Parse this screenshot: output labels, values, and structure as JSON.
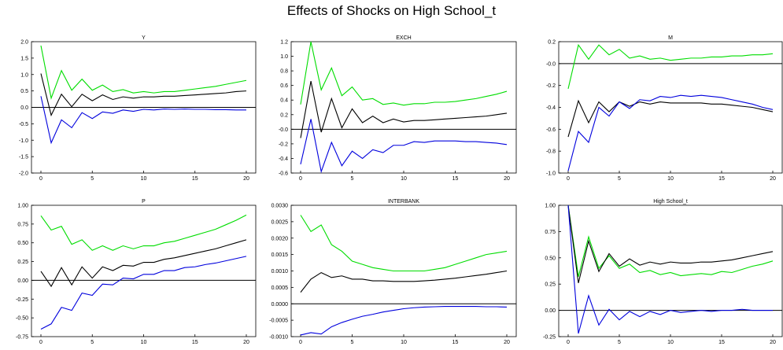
{
  "figure": {
    "title": "Effects of Shocks on High School_t"
  },
  "colors": {
    "point": "#000000",
    "upper": "#00dd00",
    "lower": "#0000dd",
    "frame": "#000000"
  },
  "chart_data": [
    {
      "type": "line",
      "title": "Y",
      "x": [
        0,
        1,
        2,
        3,
        4,
        5,
        6,
        7,
        8,
        9,
        10,
        11,
        12,
        13,
        14,
        15,
        16,
        17,
        18,
        19,
        20
      ],
      "ylim": [
        -2.0,
        2.0
      ],
      "yticks": [
        -2.0,
        -1.5,
        -1.0,
        -0.5,
        0.0,
        0.5,
        1.0,
        1.5,
        2.0
      ],
      "ytick_labels": [
        "-2.0",
        "-1.5",
        "-1.0",
        "-0.5",
        "0.0",
        "0.5",
        "1.0",
        "1.5",
        "2.0"
      ],
      "xticks": [
        0,
        5,
        10,
        15,
        20
      ],
      "xtick_labels": [
        "0",
        "5",
        "10",
        "15",
        "20"
      ],
      "zero_line": 0,
      "series": [
        {
          "key": "upper",
          "values": [
            1.88,
            0.28,
            1.12,
            0.52,
            0.86,
            0.52,
            0.68,
            0.48,
            0.54,
            0.44,
            0.48,
            0.44,
            0.48,
            0.48,
            0.52,
            0.56,
            0.6,
            0.64,
            0.7,
            0.76,
            0.82
          ]
        },
        {
          "key": "point",
          "values": [
            1.03,
            -0.24,
            0.4,
            0.02,
            0.4,
            0.2,
            0.38,
            0.24,
            0.32,
            0.28,
            0.32,
            0.32,
            0.34,
            0.34,
            0.36,
            0.38,
            0.4,
            0.42,
            0.44,
            0.48,
            0.5
          ]
        },
        {
          "key": "lower",
          "values": [
            0.34,
            -1.08,
            -0.38,
            -0.62,
            -0.16,
            -0.34,
            -0.14,
            -0.18,
            -0.08,
            -0.12,
            -0.06,
            -0.08,
            -0.05,
            -0.06,
            -0.05,
            -0.06,
            -0.06,
            -0.07,
            -0.07,
            -0.08,
            -0.08
          ]
        }
      ]
    },
    {
      "type": "line",
      "title": "EXCH",
      "x": [
        0,
        1,
        2,
        3,
        4,
        5,
        6,
        7,
        8,
        9,
        10,
        11,
        12,
        13,
        14,
        15,
        16,
        17,
        18,
        19,
        20
      ],
      "ylim": [
        -0.6,
        1.2
      ],
      "yticks": [
        -0.6,
        -0.4,
        -0.2,
        0.0,
        0.2,
        0.4,
        0.6,
        0.8,
        1.0,
        1.2
      ],
      "ytick_labels": [
        "-0.6",
        "-0.4",
        "-0.2",
        "-0.0",
        "0.2",
        "0.4",
        "0.6",
        "0.8",
        "1.0",
        "1.2"
      ],
      "xticks": [
        0,
        5,
        10,
        15,
        20
      ],
      "xtick_labels": [
        "0",
        "5",
        "10",
        "15",
        "20"
      ],
      "zero_line": 0,
      "series": [
        {
          "key": "upper",
          "values": [
            0.34,
            1.2,
            0.54,
            0.84,
            0.46,
            0.58,
            0.4,
            0.42,
            0.34,
            0.36,
            0.33,
            0.35,
            0.35,
            0.37,
            0.37,
            0.38,
            0.4,
            0.42,
            0.45,
            0.48,
            0.52
          ]
        },
        {
          "key": "point",
          "values": [
            -0.12,
            0.66,
            -0.04,
            0.42,
            0.02,
            0.28,
            0.09,
            0.18,
            0.09,
            0.14,
            0.1,
            0.12,
            0.12,
            0.13,
            0.14,
            0.15,
            0.16,
            0.17,
            0.18,
            0.2,
            0.22
          ]
        },
        {
          "key": "lower",
          "values": [
            -0.48,
            0.14,
            -0.58,
            -0.18,
            -0.5,
            -0.3,
            -0.4,
            -0.28,
            -0.32,
            -0.22,
            -0.22,
            -0.17,
            -0.18,
            -0.16,
            -0.16,
            -0.16,
            -0.17,
            -0.17,
            -0.18,
            -0.19,
            -0.21
          ]
        }
      ]
    },
    {
      "type": "line",
      "title": "M",
      "x": [
        0,
        1,
        2,
        3,
        4,
        5,
        6,
        7,
        8,
        9,
        10,
        11,
        12,
        13,
        14,
        15,
        16,
        17,
        18,
        19,
        20
      ],
      "ylim": [
        -1.0,
        0.2
      ],
      "yticks": [
        -1.0,
        -0.8,
        -0.6,
        -0.4,
        -0.2,
        0.0,
        0.2
      ],
      "ytick_labels": [
        "-1.0",
        "-0.8",
        "-0.6",
        "-0.4",
        "-0.2",
        "-0.0",
        "0.2"
      ],
      "xticks": [
        0,
        5,
        10,
        15,
        20
      ],
      "xtick_labels": [
        "0",
        "5",
        "10",
        "15",
        "20"
      ],
      "zero_line": 0,
      "series": [
        {
          "key": "upper",
          "values": [
            -0.23,
            0.17,
            0.04,
            0.17,
            0.08,
            0.13,
            0.05,
            0.07,
            0.04,
            0.05,
            0.03,
            0.04,
            0.05,
            0.05,
            0.06,
            0.06,
            0.07,
            0.07,
            0.08,
            0.08,
            0.09
          ]
        },
        {
          "key": "point",
          "values": [
            -0.67,
            -0.34,
            -0.54,
            -0.35,
            -0.44,
            -0.35,
            -0.39,
            -0.35,
            -0.37,
            -0.35,
            -0.36,
            -0.36,
            -0.36,
            -0.36,
            -0.37,
            -0.37,
            -0.38,
            -0.39,
            -0.4,
            -0.42,
            -0.44
          ]
        },
        {
          "key": "lower",
          "values": [
            -0.98,
            -0.62,
            -0.72,
            -0.4,
            -0.48,
            -0.35,
            -0.41,
            -0.33,
            -0.34,
            -0.3,
            -0.31,
            -0.29,
            -0.3,
            -0.29,
            -0.3,
            -0.31,
            -0.33,
            -0.35,
            -0.37,
            -0.4,
            -0.42
          ]
        }
      ]
    },
    {
      "type": "line",
      "title": "P",
      "x": [
        0,
        1,
        2,
        3,
        4,
        5,
        6,
        7,
        8,
        9,
        10,
        11,
        12,
        13,
        14,
        15,
        16,
        17,
        18,
        19,
        20
      ],
      "ylim": [
        -0.75,
        1.0
      ],
      "yticks": [
        -0.75,
        -0.5,
        -0.25,
        0.0,
        0.25,
        0.5,
        0.75,
        1.0
      ],
      "ytick_labels": [
        "-0.75",
        "-0.50",
        "-0.25",
        "0.00",
        "0.25",
        "0.50",
        "0.75",
        "1.00"
      ],
      "xticks": [
        0,
        5,
        10,
        15,
        20
      ],
      "xtick_labels": [
        "0",
        "5",
        "10",
        "15",
        "20"
      ],
      "zero_line": 0,
      "series": [
        {
          "key": "upper",
          "values": [
            0.86,
            0.67,
            0.72,
            0.48,
            0.54,
            0.4,
            0.46,
            0.4,
            0.46,
            0.42,
            0.46,
            0.46,
            0.5,
            0.52,
            0.56,
            0.6,
            0.64,
            0.68,
            0.74,
            0.8,
            0.87
          ]
        },
        {
          "key": "point",
          "values": [
            0.12,
            -0.08,
            0.17,
            -0.06,
            0.18,
            0.03,
            0.18,
            0.13,
            0.2,
            0.19,
            0.24,
            0.24,
            0.28,
            0.3,
            0.33,
            0.36,
            0.39,
            0.42,
            0.46,
            0.5,
            0.54
          ]
        },
        {
          "key": "lower",
          "values": [
            -0.65,
            -0.58,
            -0.36,
            -0.4,
            -0.17,
            -0.2,
            -0.05,
            -0.06,
            0.03,
            0.02,
            0.08,
            0.08,
            0.13,
            0.13,
            0.17,
            0.18,
            0.21,
            0.23,
            0.26,
            0.29,
            0.32
          ]
        }
      ]
    },
    {
      "type": "line",
      "title": "INTERBANK",
      "x": [
        0,
        1,
        2,
        3,
        4,
        5,
        6,
        7,
        8,
        9,
        10,
        11,
        12,
        13,
        14,
        15,
        16,
        17,
        18,
        19,
        20
      ],
      "ylim": [
        -0.001,
        0.003
      ],
      "yticks": [
        -0.001,
        -0.0005,
        0.0,
        0.0005,
        0.001,
        0.0015,
        0.002,
        0.0025,
        0.003
      ],
      "ytick_labels": [
        "-0.0010",
        "-0.0005",
        "0.0000",
        "0.0005",
        "0.0010",
        "0.0015",
        "0.0020",
        "0.0025",
        "0.0030"
      ],
      "xticks": [
        0,
        5,
        10,
        15,
        20
      ],
      "xtick_labels": [
        "0",
        "5",
        "10",
        "15",
        "20"
      ],
      "zero_line": 0,
      "series": [
        {
          "key": "upper",
          "values": [
            0.0027,
            0.0022,
            0.0024,
            0.0018,
            0.0016,
            0.0013,
            0.0012,
            0.0011,
            0.00105,
            0.001,
            0.001,
            0.001,
            0.001,
            0.00105,
            0.0011,
            0.0012,
            0.0013,
            0.0014,
            0.0015,
            0.00155,
            0.0016
          ]
        },
        {
          "key": "point",
          "values": [
            0.00035,
            0.00075,
            0.00095,
            0.0008,
            0.00085,
            0.00075,
            0.00075,
            0.0007,
            0.0007,
            0.00068,
            0.00068,
            0.00068,
            0.0007,
            0.00072,
            0.00075,
            0.00078,
            0.00082,
            0.00086,
            0.0009,
            0.00095,
            0.001
          ]
        },
        {
          "key": "lower",
          "values": [
            -0.00095,
            -0.00088,
            -0.00092,
            -0.0007,
            -0.00057,
            -0.00047,
            -0.00038,
            -0.00032,
            -0.00025,
            -0.0002,
            -0.00015,
            -0.00012,
            -0.0001,
            -9e-05,
            -8e-05,
            -8e-05,
            -8e-05,
            -8e-05,
            -9e-05,
            -9e-05,
            -0.0001
          ]
        }
      ]
    },
    {
      "type": "line",
      "title": "High School_t",
      "x": [
        0,
        1,
        2,
        3,
        4,
        5,
        6,
        7,
        8,
        9,
        10,
        11,
        12,
        13,
        14,
        15,
        16,
        17,
        18,
        19,
        20
      ],
      "ylim": [
        -0.25,
        1.0
      ],
      "yticks": [
        -0.25,
        0.0,
        0.25,
        0.5,
        0.75,
        1.0
      ],
      "ytick_labels": [
        "-0.25",
        "0.00",
        "0.25",
        "0.50",
        "0.75",
        "1.00"
      ],
      "xticks": [
        0,
        5,
        10,
        15,
        20
      ],
      "xtick_labels": [
        "0",
        "5",
        "10",
        "15",
        "20"
      ],
      "zero_line": 0,
      "series": [
        {
          "key": "upper",
          "values": [
            1.0,
            0.32,
            0.7,
            0.4,
            0.52,
            0.4,
            0.44,
            0.36,
            0.38,
            0.34,
            0.36,
            0.33,
            0.34,
            0.35,
            0.34,
            0.37,
            0.36,
            0.39,
            0.42,
            0.44,
            0.47
          ]
        },
        {
          "key": "point",
          "values": [
            1.0,
            0.26,
            0.66,
            0.37,
            0.54,
            0.42,
            0.49,
            0.43,
            0.46,
            0.44,
            0.46,
            0.45,
            0.45,
            0.46,
            0.46,
            0.47,
            0.48,
            0.5,
            0.52,
            0.54,
            0.56
          ]
        },
        {
          "key": "lower",
          "values": [
            1.0,
            -0.22,
            0.14,
            -0.14,
            0.01,
            -0.09,
            -0.01,
            -0.06,
            -0.01,
            -0.04,
            0.0,
            -0.02,
            -0.01,
            0.0,
            -0.01,
            0.0,
            0.0,
            0.01,
            0.0,
            0.0,
            0.0
          ]
        }
      ]
    }
  ]
}
